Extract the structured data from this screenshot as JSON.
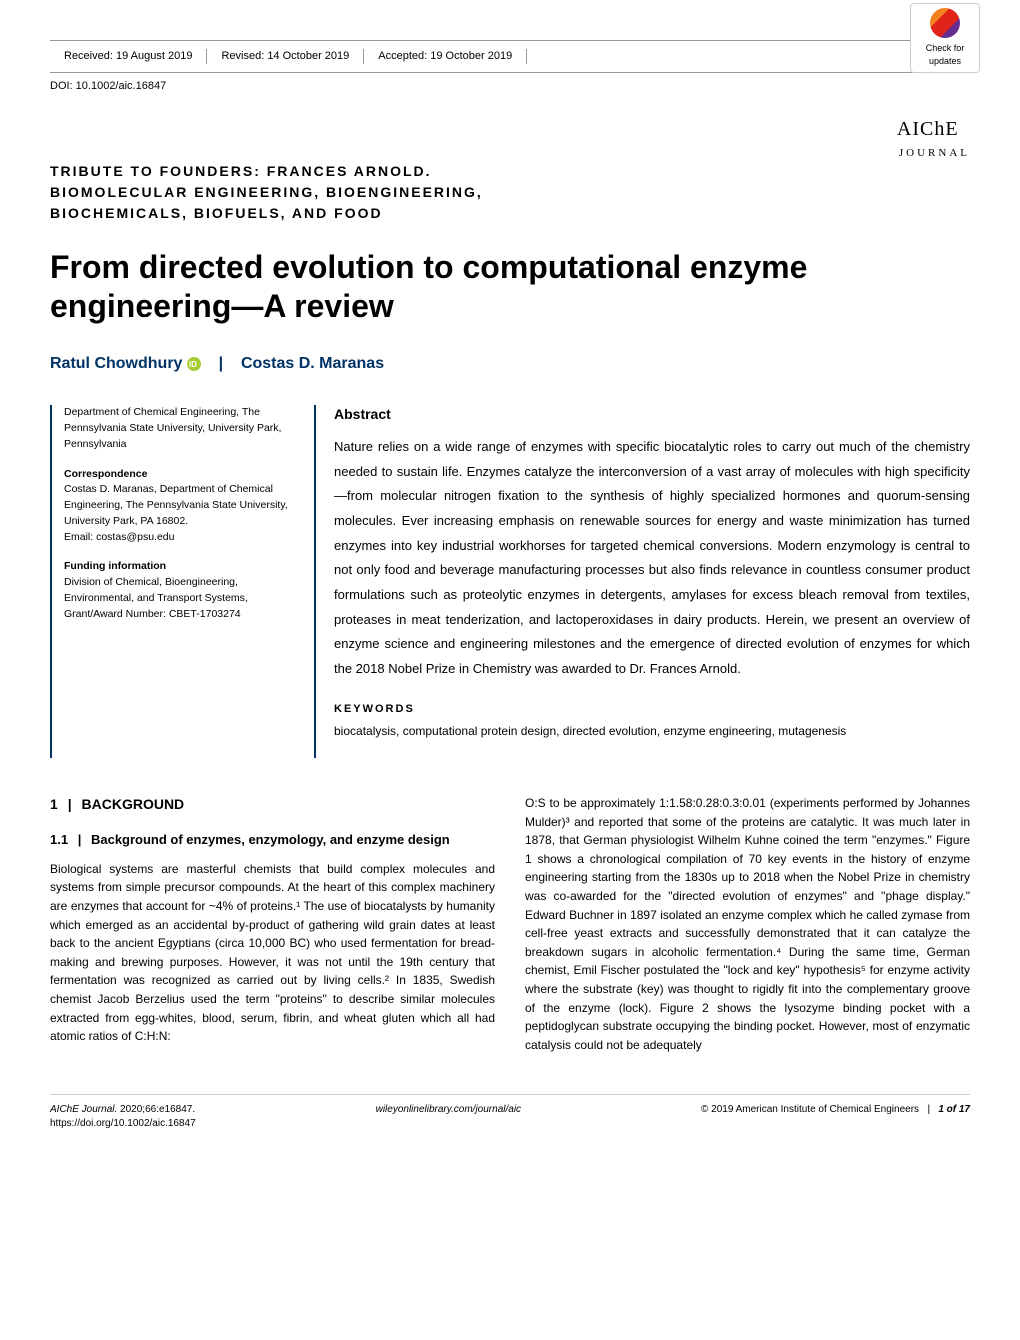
{
  "header": {
    "received_label": "Received:",
    "received_date": "19 August 2019",
    "revised_label": "Revised:",
    "revised_date": "14 October 2019",
    "accepted_label": "Accepted:",
    "accepted_date": "19 October 2019",
    "doi": "DOI: 10.1002/aic.16847",
    "crossmark_line1": "Check for",
    "crossmark_line2": "updates"
  },
  "journal": {
    "main": "AIChE",
    "sub": "JOURNAL"
  },
  "article_type": {
    "line1": "TRIBUTE TO FOUNDERS: FRANCES ARNOLD.",
    "line2": "BIOMOLECULAR ENGINEERING, BIOENGINEERING,",
    "line3": "BIOCHEMICALS, BIOFUELS, AND FOOD"
  },
  "title": "From directed evolution to computational enzyme engineering—A review",
  "authors": {
    "author1": "Ratul Chowdhury",
    "separator": "|",
    "author2": "Costas D. Maranas"
  },
  "meta": {
    "affiliation": "Department of Chemical Engineering, The Pennsylvania State University, University Park, Pennsylvania",
    "correspondence_label": "Correspondence",
    "correspondence_text": "Costas D. Maranas, Department of Chemical Engineering, The Pennsylvania State University, University Park, PA 16802.",
    "email_label": "Email: ",
    "email": "costas@psu.edu",
    "funding_label": "Funding information",
    "funding_text": "Division of Chemical, Bioengineering, Environmental, and Transport Systems, Grant/Award Number: CBET-1703274"
  },
  "abstract": {
    "heading": "Abstract",
    "text": "Nature relies on a wide range of enzymes with specific biocatalytic roles to carry out much of the chemistry needed to sustain life. Enzymes catalyze the interconversion of a vast array of molecules with high specificity—from molecular nitrogen fixation to the synthesis of highly specialized hormones and quorum-sensing molecules. Ever increasing emphasis on renewable sources for energy and waste minimization has turned enzymes into key industrial workhorses for targeted chemical conversions. Modern enzymology is central to not only food and beverage manufacturing processes but also finds relevance in countless consumer product formulations such as proteolytic enzymes in detergents, amylases for excess bleach removal from textiles, proteases in meat tenderization, and lactoperoxidases in dairy products. Herein, we present an overview of enzyme science and engineering milestones and the emergence of directed evolution of enzymes for which the 2018 Nobel Prize in Chemistry was awarded to Dr. Frances Arnold.",
    "keywords_heading": "KEYWORDS",
    "keywords": "biocatalysis, computational protein design, directed evolution, enzyme engineering, mutagenesis"
  },
  "body": {
    "section1_num": "1",
    "section1_bar": "|",
    "section1_title": "BACKGROUND",
    "subsection11_num": "1.1",
    "subsection11_bar": "|",
    "subsection11_title": "Background of enzymes, enzymology, and enzyme design",
    "col1_p1": "Biological systems are masterful chemists that build complex molecules and systems from simple precursor compounds. At the heart of this complex machinery are enzymes that account for ~4% of proteins.¹ The use of biocatalysts by humanity which emerged as an accidental by-product of gathering wild grain dates at least back to the ancient Egyptians (circa 10,000 BC) who used fermentation for bread-making and brewing purposes. However, it was not until the 19th century that fermentation was recognized as carried out by living cells.² In 1835, Swedish chemist Jacob Berzelius used the term \"proteins\" to describe similar molecules extracted from egg-whites, blood, serum, fibrin, and wheat gluten which all had atomic ratios of C:H:N:",
    "col2_p1": "O:S to be approximately 1:1.58:0.28:0.3:0.01 (experiments performed by Johannes Mulder)³ and reported that some of the proteins are catalytic. It was much later in 1878, that German physiologist Wilhelm Kuhne coined the term \"enzymes.\" Figure 1 shows a chronological compilation of 70 key events in the history of enzyme engineering starting from the 1830s up to 2018 when the Nobel Prize in chemistry was co-awarded for the \"directed evolution of enzymes\" and \"phage display.\" Edward Buchner in 1897 isolated an enzyme complex which he called zymase from cell-free yeast extracts and successfully demonstrated that it can catalyze the breakdown sugars in alcoholic fermentation.⁴ During the same time, German chemist, Emil Fischer postulated the \"lock and key\" hypothesis⁵ for enzyme activity where the substrate (key) was thought to rigidly fit into the complementary groove of the enzyme (lock). Figure 2 shows the lysozyme binding pocket with a peptidoglycan substrate occupying the binding pocket. However, most of enzymatic catalysis could not be adequately"
  },
  "footer": {
    "left_italic": "AIChE Journal.",
    "left_rest": " 2020;66:e16847.",
    "left_url": "https://doi.org/10.1002/aic.16847",
    "center": "wileyonlinelibrary.com/journal/aic",
    "right_copyright": "© 2019 American Institute of Chemical Engineers",
    "right_page": "1 of 17"
  },
  "colors": {
    "accent": "#003366",
    "orcid": "#a6ce39",
    "rule": "#999999",
    "text": "#000000"
  }
}
